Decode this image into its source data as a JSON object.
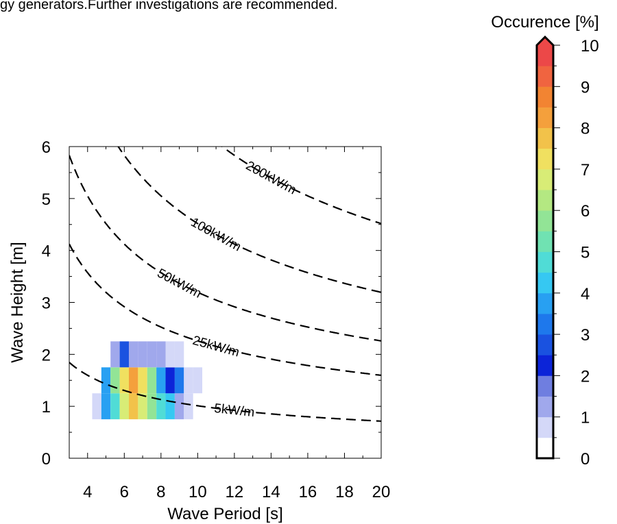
{
  "caption": "gy generators.Further investigations are recommended.",
  "chart_data": {
    "type": "heatmap",
    "xlabel": "Wave Period [s]",
    "ylabel": "Wave Height [m]",
    "xlim": [
      3,
      20
    ],
    "ylim": [
      0,
      6
    ],
    "xticks": [
      4,
      6,
      8,
      10,
      12,
      14,
      16,
      18,
      20
    ],
    "yticks": [
      0,
      1,
      2,
      3,
      4,
      5,
      6
    ],
    "cell_width_s": 0.5,
    "cell_height_m": 0.5,
    "cells": [
      {
        "x": 4.5,
        "y": 1.0,
        "value": 0.5
      },
      {
        "x": 5.0,
        "y": 1.0,
        "value": 3.5
      },
      {
        "x": 5.5,
        "y": 1.0,
        "value": 4.8
      },
      {
        "x": 6.0,
        "y": 1.0,
        "value": 6.5
      },
      {
        "x": 6.5,
        "y": 1.0,
        "value": 7.5
      },
      {
        "x": 7.0,
        "y": 1.0,
        "value": 6.5
      },
      {
        "x": 7.5,
        "y": 1.0,
        "value": 5.5
      },
      {
        "x": 8.0,
        "y": 1.0,
        "value": 4.5
      },
      {
        "x": 8.5,
        "y": 1.0,
        "value": 4.0
      },
      {
        "x": 9.0,
        "y": 1.0,
        "value": 1.3
      },
      {
        "x": 9.5,
        "y": 1.0,
        "value": 0.5
      },
      {
        "x": 5.0,
        "y": 1.5,
        "value": 3.5
      },
      {
        "x": 5.5,
        "y": 1.5,
        "value": 5.5
      },
      {
        "x": 6.0,
        "y": 1.5,
        "value": 7.2
      },
      {
        "x": 6.5,
        "y": 1.5,
        "value": 8.0
      },
      {
        "x": 7.0,
        "y": 1.5,
        "value": 7.2
      },
      {
        "x": 7.5,
        "y": 1.5,
        "value": 5.5
      },
      {
        "x": 8.0,
        "y": 1.5,
        "value": 3.5
      },
      {
        "x": 8.5,
        "y": 1.5,
        "value": 2.2
      },
      {
        "x": 9.0,
        "y": 1.5,
        "value": 3.2
      },
      {
        "x": 9.5,
        "y": 1.5,
        "value": 0.8
      },
      {
        "x": 10.0,
        "y": 1.5,
        "value": 0.5
      },
      {
        "x": 5.5,
        "y": 2.0,
        "value": 1.3
      },
      {
        "x": 6.0,
        "y": 2.0,
        "value": 2.8
      },
      {
        "x": 6.5,
        "y": 2.0,
        "value": 1.0
      },
      {
        "x": 7.0,
        "y": 2.0,
        "value": 1.0
      },
      {
        "x": 7.5,
        "y": 2.0,
        "value": 1.0
      },
      {
        "x": 8.0,
        "y": 2.0,
        "value": 1.0
      },
      {
        "x": 8.5,
        "y": 2.0,
        "value": 0.5
      },
      {
        "x": 9.0,
        "y": 2.0,
        "value": 0.5
      }
    ],
    "contours": [
      {
        "label": "5kW/m",
        "power_kw_per_m": 5
      },
      {
        "label": "25kW/m",
        "power_kw_per_m": 25
      },
      {
        "label": "50kW/m",
        "power_kw_per_m": 50
      },
      {
        "label": "100kW/m",
        "power_kw_per_m": 100
      },
      {
        "label": "200kW/m",
        "power_kw_per_m": 200
      }
    ],
    "colorbar": {
      "title": "Occurence [%]",
      "min": 0,
      "max": 10,
      "ticks": [
        0,
        1,
        2,
        3,
        4,
        5,
        6,
        7,
        8,
        9,
        10
      ],
      "colors": [
        "#ffffff",
        "#d4d8f8",
        "#a0a8ec",
        "#6f7ee0",
        "#0c24d8",
        "#1a52e0",
        "#1e78ec",
        "#28a0f2",
        "#36c8f2",
        "#50dcd6",
        "#70e2b2",
        "#92e496",
        "#b4e882",
        "#d8ec76",
        "#f0e060",
        "#f2c24a",
        "#f4a03c",
        "#f28432",
        "#f06440",
        "#ec4848"
      ]
    }
  }
}
